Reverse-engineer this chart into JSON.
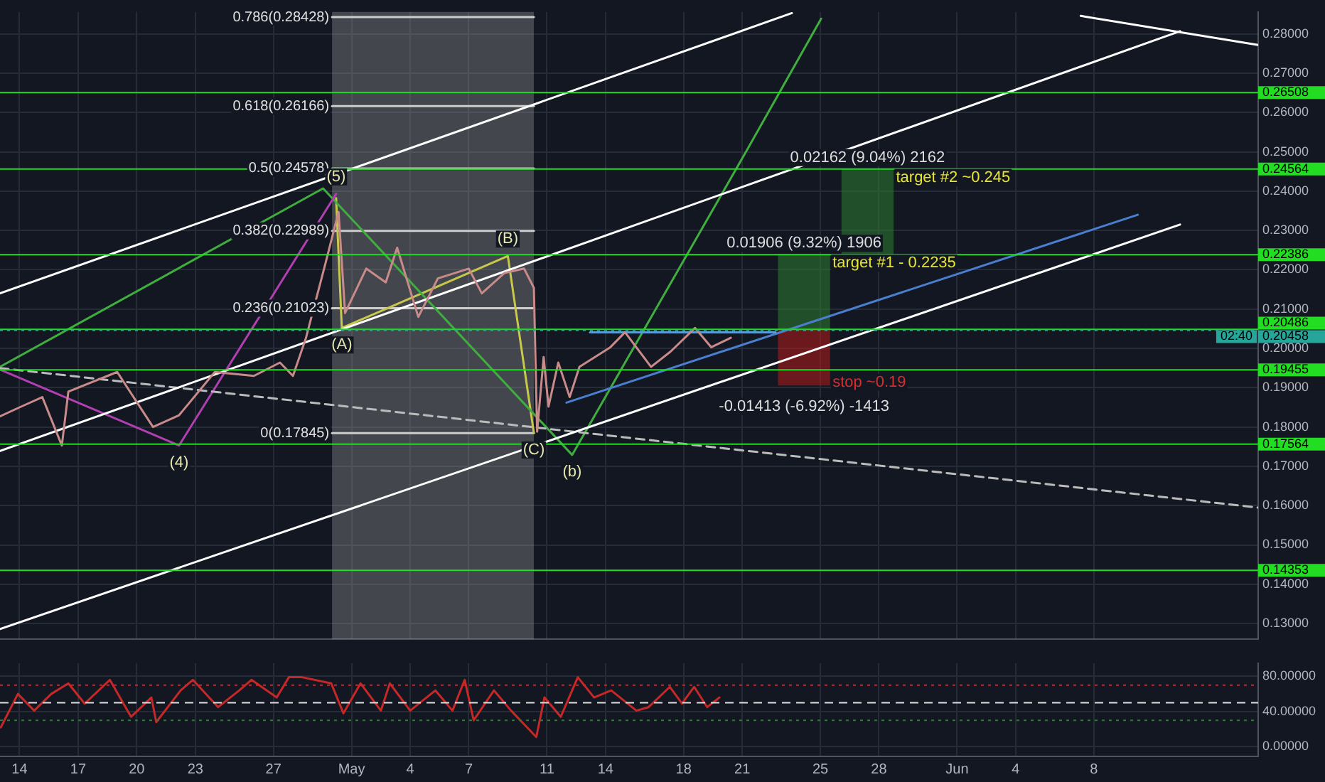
{
  "chart_data": [
    {
      "type": "line",
      "marker": "none",
      "grid": true,
      "legend": false,
      "tick_labels": "y",
      "xlim": [
        "--04-13T00:00",
        "--06-16T10:00"
      ],
      "ylim": [
        0.126,
        0.2856
      ],
      "xticks": [
        {
          "value": "--04-14",
          "label": "14"
        },
        {
          "value": "--04-17",
          "label": "17"
        },
        {
          "value": "--04-20",
          "label": "20"
        },
        {
          "value": "--04-23",
          "label": "23"
        },
        {
          "value": "--04-27",
          "label": "27"
        },
        {
          "value": "--05-01",
          "label": "May"
        },
        {
          "value": "--05-04",
          "label": "4"
        },
        {
          "value": "--05-07",
          "label": "7"
        },
        {
          "value": "--05-11",
          "label": "11"
        },
        {
          "value": "--05-14",
          "label": "14"
        },
        {
          "value": "--05-18",
          "label": "18"
        },
        {
          "value": "--05-21",
          "label": "21"
        },
        {
          "value": "--05-25",
          "label": "25"
        },
        {
          "value": "--05-28",
          "label": "28"
        },
        {
          "value": "--06-01",
          "label": "Jun"
        },
        {
          "value": "--06-04",
          "label": "4"
        },
        {
          "value": "--06-08",
          "label": "8"
        }
      ],
      "yticks": [
        {
          "value": 0.13,
          "label": "0.13000"
        },
        {
          "value": 0.14,
          "label": "0.14000"
        },
        {
          "value": 0.15,
          "label": "0.15000"
        },
        {
          "value": 0.16,
          "label": "0.16000"
        },
        {
          "value": 0.17,
          "label": "0.17000"
        },
        {
          "value": 0.18,
          "label": "0.18000"
        },
        {
          "value": 0.19,
          "label": "0.19000"
        },
        {
          "value": 0.2,
          "label": "0.20000"
        },
        {
          "value": 0.21,
          "label": "0.21000"
        },
        {
          "value": 0.22,
          "label": "0.22000"
        },
        {
          "value": 0.23,
          "label": "0.23000"
        },
        {
          "value": 0.24,
          "label": "0.24000"
        },
        {
          "value": 0.25,
          "label": "0.25000"
        },
        {
          "value": 0.26,
          "label": "0.26000"
        },
        {
          "value": 0.27,
          "label": "0.27000"
        },
        {
          "value": 0.28,
          "label": "0.28000"
        }
      ],
      "bands": [
        {
          "axis": "x",
          "from": "--04-30T00:00",
          "to": "--05-10T08:00",
          "color": "#9e9e9e"
        }
      ],
      "ref_lines": [
        {
          "axis": "y",
          "value": 0.26508,
          "label": "0.26508",
          "color": "#22dd22"
        },
        {
          "axis": "y",
          "value": 0.24564,
          "label": "0.24564",
          "color": "#22dd22"
        },
        {
          "axis": "y",
          "value": 0.22386,
          "label": "0.22386",
          "color": "#22dd22"
        },
        {
          "axis": "y",
          "value": 0.20486,
          "label": "0.20486",
          "color": "#22dd22"
        },
        {
          "axis": "y",
          "value": 0.20458,
          "label": "0.20458",
          "color": "#26a69a",
          "line_style": "dotted"
        },
        {
          "axis": "y",
          "value": 0.19455,
          "label": "0.19455",
          "color": "#22dd22"
        },
        {
          "axis": "y",
          "value": 0.17564,
          "label": "0.17564",
          "color": "#22dd22"
        },
        {
          "axis": "y",
          "value": 0.14353,
          "label": "0.14353",
          "color": "#22dd22"
        }
      ],
      "series": [
        {
          "color": "#c98a8a",
          "x": [
            "--04-13T00:00",
            "--04-14T00:00",
            "--04-15T04:00",
            "--04-16T04:00",
            "--04-16T12:00",
            "--04-19T00:00",
            "--04-20T20:00",
            "--04-22T04:00",
            "--04-24T00:00",
            "--04-26T00:00",
            "--04-27T08:00",
            "--04-28T00:00",
            "--04-28T16:00",
            "--04-29T16:00",
            "--04-30T08:00",
            "--04-30T16:00",
            "--05-01T18:00",
            "--05-02T18:00",
            "--05-03T08:00",
            "--05-04T10:00",
            "--05-05T10:00",
            "--05-07T00:00",
            "--05-07T16:00",
            "--05-08T20:00",
            "--05-09T20:00",
            "--05-10T08:00",
            "--05-10T12:00",
            "--05-10T20:00",
            "--05-11T02:00",
            "--05-11T14:00",
            "--05-12T04:00",
            "--05-12T16:00",
            "--05-14T06:00",
            "--05-15T00:00",
            "--05-16T08:00",
            "--05-17T08:00",
            "--05-18T14:00",
            "--05-19T10:00",
            "--05-20T10:00"
          ],
          "values": [
            0.1827,
            0.185,
            0.1876,
            0.1753,
            0.189,
            0.194,
            0.18,
            0.183,
            0.194,
            0.193,
            0.1964,
            0.193,
            0.2027,
            0.2217,
            0.2347,
            0.209,
            0.2203,
            0.2168,
            0.2256,
            0.208,
            0.2178,
            0.2203,
            0.214,
            0.2192,
            0.2203,
            0.2154,
            0.1788,
            0.1978,
            0.1852,
            0.1964,
            0.1876,
            0.1953,
            0.2003,
            0.2041,
            0.1953,
            0.1992,
            0.2052,
            0.2003,
            0.2027
          ]
        },
        {
          "color": "#ffffff",
          "x": [
            "--04-13T00:00",
            "--05-23T13:00"
          ],
          "values": [
            0.214,
            0.2853
          ]
        },
        {
          "color": "#ffffff",
          "x": [
            "--04-13T00:00",
            "--06-12T10:00"
          ],
          "values": [
            0.1739,
            0.2807
          ]
        },
        {
          "color": "#ffffff",
          "x": [
            "--04-13T00:00",
            "--06-12T10:00"
          ],
          "values": [
            0.1286,
            0.2315
          ]
        },
        {
          "color": "#ffffff",
          "x": [
            "--06-07T08:00",
            "--06-16T10:00"
          ],
          "values": [
            0.2846,
            0.2772
          ]
        },
        {
          "color": "#bbbbbb",
          "line_style": "dashed",
          "x": [
            "--04-13T00:00",
            "--06-16T10:00"
          ],
          "values": [
            0.195,
            0.1595
          ]
        },
        {
          "color": "#5b9bd5",
          "x": [
            "--05-13T05:00",
            "--05-22T17:00"
          ],
          "values": [
            0.2041,
            0.2041
          ]
        },
        {
          "color": "#4a7fd0",
          "x": [
            "--05-12T00:00",
            "--06-10T06:00"
          ],
          "values": [
            0.1862,
            0.234
          ]
        },
        {
          "color": "#b03fb0",
          "x": [
            "--04-13T00:00",
            "--04-22T04:00",
            "--04-30T05:00"
          ],
          "values": [
            0.1946,
            0.1753,
            0.2393
          ]
        },
        {
          "color": "#3fae3f",
          "x": [
            "--04-13T00:00",
            "--04-29T13:00",
            "--05-12T07:00",
            "--05-21T06:00",
            "--05-25T01:00"
          ],
          "values": [
            0.1953,
            0.2407,
            0.1729,
            0.2505,
            0.2839
          ]
        },
        {
          "color": "#c8c84a",
          "x": [
            "--04-30T05:00",
            "--04-30T12:00",
            "--05-09T00:00",
            "--05-10T08:00"
          ],
          "values": [
            0.2382,
            0.2052,
            0.2235,
            0.1785
          ]
        },
        {
          "type": "bar",
          "color": "#2e7d32",
          "x": [
            "--05-24T04:00"
          ],
          "base": [
            0.2048
          ],
          "values": [
            0.01906
          ]
        },
        {
          "type": "bar",
          "color": "#b71c1c",
          "x": [
            "--05-24T04:00"
          ],
          "base": [
            0.2048
          ],
          "values": [
            -0.01413
          ]
        },
        {
          "type": "bar",
          "color": "#2e7d32",
          "x": [
            "--05-27T10:00"
          ],
          "base": [
            0.22402
          ],
          "values": [
            0.02162
          ]
        },
        {
          "name": "0.786(0.28428)",
          "color": "#cccccc",
          "x": [
            "--04-30T00:00",
            "--05-10T08:00"
          ],
          "values": [
            0.28428,
            0.28428
          ]
        },
        {
          "name": "0.618(0.26166)",
          "color": "#cccccc",
          "x": [
            "--04-30T00:00",
            "--05-10T08:00"
          ],
          "values": [
            0.26166,
            0.26166
          ]
        },
        {
          "name": "0.5(0.24578)",
          "color": "#cccccc",
          "x": [
            "--04-30T00:00",
            "--05-10T08:00"
          ],
          "values": [
            0.24578,
            0.24578
          ]
        },
        {
          "name": "0.382(0.22989)",
          "color": "#cccccc",
          "x": [
            "--04-30T00:00",
            "--05-10T08:00"
          ],
          "values": [
            0.22989,
            0.22989
          ]
        },
        {
          "name": "0.236(0.21023)",
          "color": "#cccccc",
          "x": [
            "--04-30T00:00",
            "--05-10T08:00"
          ],
          "values": [
            0.21023,
            0.21023
          ]
        },
        {
          "name": "0(0.17845)",
          "color": "#cccccc",
          "x": [
            "--04-30T00:00",
            "--05-10T08:00"
          ],
          "values": [
            0.17845,
            0.17845
          ]
        }
      ],
      "annotations": [
        {
          "text": "(4)",
          "x": "--04-22T04:00",
          "y": 0.1753
        },
        {
          "text": "(5)",
          "x": "--04-30T05:00",
          "y": 0.2393
        },
        {
          "text": "(A)",
          "x": "--04-30T12:00",
          "y": 0.2052
        },
        {
          "text": "(B)",
          "x": "--05-09T00:00",
          "y": 0.2235
        },
        {
          "text": "(C)",
          "x": "--05-10T08:00",
          "y": 0.1785
        },
        {
          "text": "(b)",
          "x": "--05-12T07:00",
          "y": 0.1729
        },
        {
          "text": "0.01906 (9.32%) 1906",
          "x": "--05-24T04:00",
          "y": 0.22386
        },
        {
          "text": "target #1 - 0.2235",
          "x": "--05-24T04:00",
          "y": 0.22386
        },
        {
          "text": "0.02162 (9.04%) 2162",
          "x": "--05-27T10:00",
          "y": 0.24564
        },
        {
          "text": "target #2 ~0.245",
          "x": "--05-27T10:00",
          "y": 0.24564
        },
        {
          "text": "-0.01413 (-6.92%) -1413",
          "x": "--05-24T04:00",
          "y": 0.19067
        },
        {
          "text": "stop ~0.19",
          "x": "--05-24T04:00",
          "y": 0.19067
        },
        "02:40"
      ]
    },
    {
      "type": "line",
      "marker": "none",
      "grid": true,
      "legend": false,
      "xlim": [
        "--04-13T00:00",
        "--06-16T10:00"
      ],
      "ylim": [
        -11,
        95
      ],
      "xticks": [
        {
          "value": "--04-14",
          "label": "14"
        },
        {
          "value": "--04-17",
          "label": "17"
        },
        {
          "value": "--04-20",
          "label": "20"
        },
        {
          "value": "--04-23",
          "label": "23"
        },
        {
          "value": "--04-27",
          "label": "27"
        },
        {
          "value": "--05-01",
          "label": "May"
        },
        {
          "value": "--05-04",
          "label": "4"
        },
        {
          "value": "--05-07",
          "label": "7"
        },
        {
          "value": "--05-11",
          "label": "11"
        },
        {
          "value": "--05-14",
          "label": "14"
        },
        {
          "value": "--05-18",
          "label": "18"
        },
        {
          "value": "--05-21",
          "label": "21"
        },
        {
          "value": "--05-25",
          "label": "25"
        },
        {
          "value": "--05-28",
          "label": "28"
        },
        {
          "value": "--06-01",
          "label": "Jun"
        },
        {
          "value": "--06-04",
          "label": "4"
        },
        {
          "value": "--06-08",
          "label": "8"
        }
      ],
      "yticks": [
        {
          "value": 0,
          "label": "0.00000"
        },
        {
          "value": 40,
          "label": "40.00000"
        },
        {
          "value": 80,
          "label": "80.00000"
        }
      ],
      "ref_lines": [
        {
          "axis": "y",
          "value": 70,
          "color": "#c62828",
          "line_style": "dotted"
        },
        {
          "axis": "y",
          "value": 50,
          "color": "#dddddd",
          "line_style": "dashed"
        },
        {
          "axis": "y",
          "value": 30,
          "color": "#2e7d32",
          "line_style": "dotted"
        }
      ],
      "series": [
        {
          "color": "#c62828",
          "x": [
            "--04-13T01:00",
            "--04-13T22:00",
            "--04-14T18:00",
            "--04-15T15:00",
            "--04-16T12:00",
            "--04-17T08:00",
            "--04-18T15:00",
            "--04-19T17:00",
            "--04-20T18:00",
            "--04-21T00:00",
            "--04-22T06:00",
            "--04-22T21:00",
            "--04-24T04:00",
            "--04-25T06:00",
            "--04-25T21:00",
            "--04-27T04:00",
            "--04-27T19:00",
            "--04-28T11:00",
            "--04-29T23:00",
            "--04-30T14:00",
            "--05-01T11:00",
            "--05-02T12:00",
            "--05-02T23:00",
            "--05-04T00:00",
            "--05-05T07:00",
            "--05-06T04:00",
            "--05-06T19:00",
            "--05-07T06:00",
            "--05-08T07:00",
            "--05-09T04:00",
            "--05-10T11:00",
            "--05-10T21:00",
            "--05-11T17:00",
            "--05-12T14:00",
            "--05-13T10:00",
            "--05-14T07:00",
            "--05-15T14:00",
            "--05-16T05:00",
            "--05-17T07:00",
            "--05-17T22:00",
            "--05-18T13:00",
            "--05-19T05:00",
            "--05-19T20:00"
          ],
          "values": [
            22,
            60,
            41,
            60,
            72,
            49,
            76,
            34,
            56,
            28,
            64,
            76,
            45,
            64,
            76,
            56,
            79,
            79,
            72,
            38,
            72,
            41,
            72,
            41,
            64,
            41,
            76,
            30,
            64,
            41,
            11,
            56,
            34,
            79,
            56,
            64,
            41,
            45,
            68,
            49,
            68,
            45,
            56
          ]
        }
      ]
    }
  ]
}
